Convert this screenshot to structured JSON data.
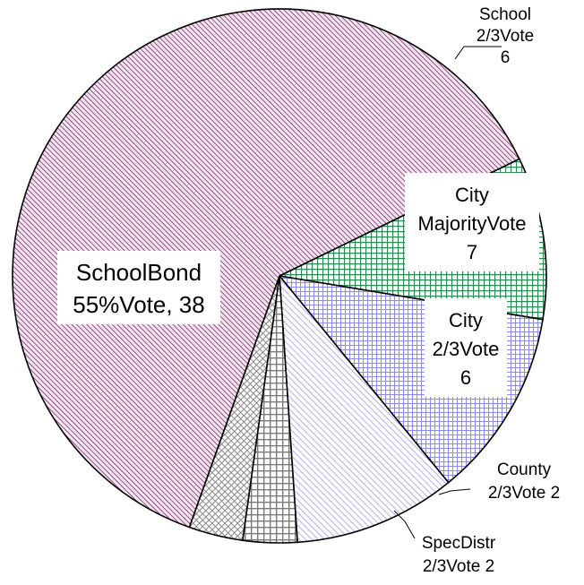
{
  "chart_data": {
    "type": "pie",
    "title": "",
    "slices": [
      {
        "label_lines": [
          "School",
          "2/3Vote",
          "6"
        ],
        "value": 6,
        "pattern": "grid-green",
        "color": "#2e8b57"
      },
      {
        "label_lines": [
          "City",
          "MajorityVote",
          "7"
        ],
        "value": 7,
        "pattern": "grid-blue",
        "color": "#8c8cf0"
      },
      {
        "label_lines": [
          "City",
          "2/3Vote",
          "6"
        ],
        "value": 6,
        "pattern": "diag-blue",
        "color": "#9a9af2"
      },
      {
        "label_lines": [
          "County",
          "2/3Vote 2"
        ],
        "value": 2,
        "pattern": "grid-gray",
        "color": "#808080"
      },
      {
        "label_lines": [
          "SpecDistr",
          "2/3Vote 2"
        ],
        "value": 2,
        "pattern": "crosshatch-gray",
        "color": "#8a8a8a"
      },
      {
        "label_lines": [
          "SchoolBond",
          "55%Vote, 38"
        ],
        "value": 38,
        "pattern": "diag-purple",
        "color": "#7a2a6a"
      }
    ]
  }
}
